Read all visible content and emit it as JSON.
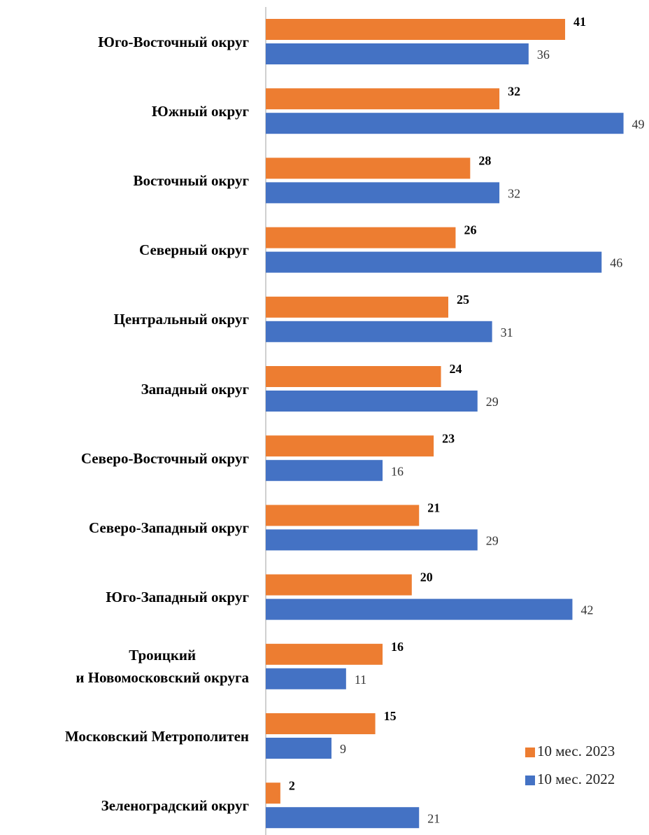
{
  "chart_data": {
    "type": "barh",
    "categories": [
      "Юго-Восточный округ",
      "Южный округ",
      "Восточный округ",
      "Северный округ",
      "Центральный округ",
      "Западный округ",
      "Северо-Восточный округ",
      "Северо-Западный округ",
      "Юго-Западный округ",
      "Троицкий\nи Новомосковский округа",
      "Московский Метрополитен",
      "Зеленоградский округ"
    ],
    "series": [
      {
        "name": "10 мес. 2023",
        "color": "#ed7d31",
        "values": [
          41,
          32,
          28,
          26,
          25,
          24,
          23,
          21,
          20,
          16,
          15,
          2
        ]
      },
      {
        "name": "10 мес. 2022",
        "color": "#4472c4",
        "values": [
          36,
          49,
          32,
          46,
          31,
          29,
          16,
          29,
          42,
          11,
          9,
          21
        ]
      }
    ],
    "xlim": [
      0,
      50
    ],
    "legend": "lower right"
  }
}
